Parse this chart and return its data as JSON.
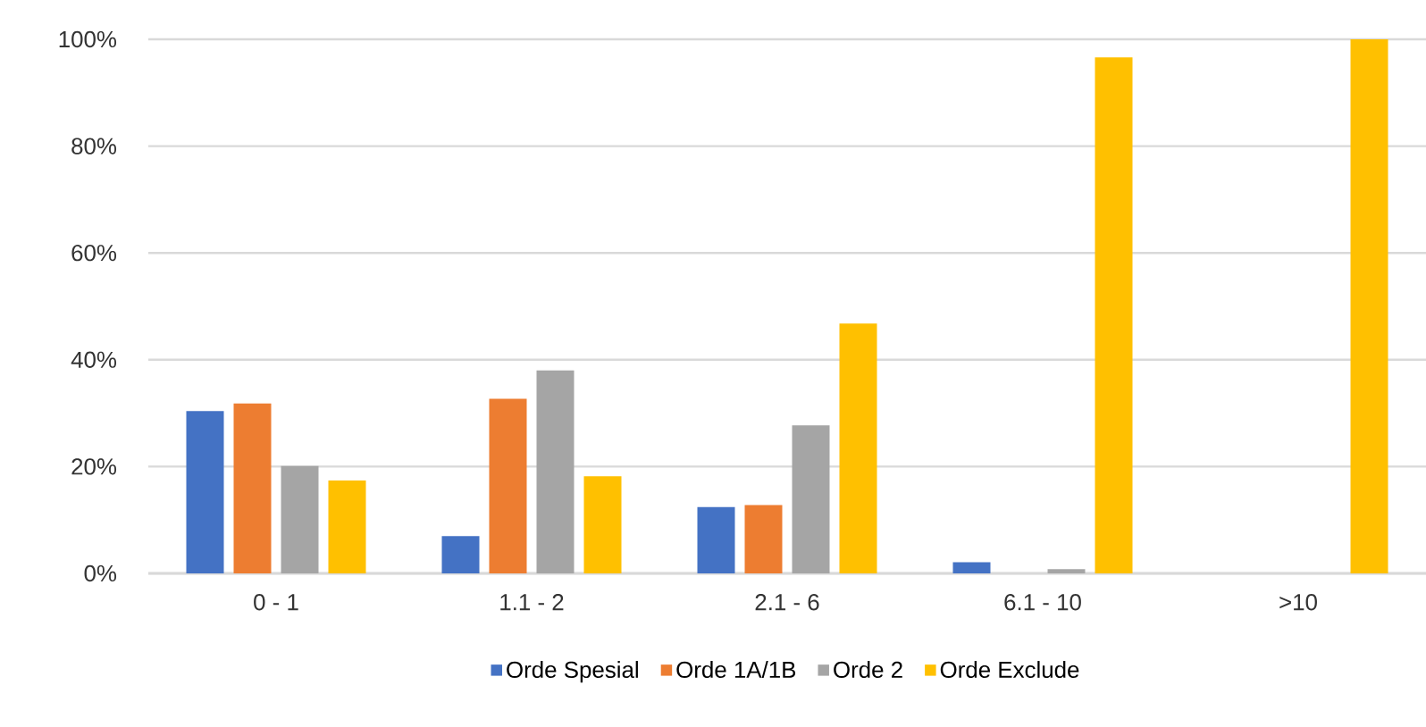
{
  "chart_data": {
    "type": "bar",
    "categories": [
      "0 - 1",
      "1.1 - 2",
      "2.1 - 6",
      "6.1 - 10",
      ">10"
    ],
    "series": [
      {
        "name": "Orde Spesial",
        "color": "#4472c4",
        "values": [
          30.4,
          7.0,
          12.4,
          2.1,
          0
        ]
      },
      {
        "name": "Orde 1A/1B",
        "color": "#ed7d31",
        "values": [
          31.8,
          32.7,
          12.8,
          0,
          0
        ]
      },
      {
        "name": "Orde 2",
        "color": "#a5a5a5",
        "values": [
          20.1,
          38.0,
          27.7,
          0.8,
          0
        ]
      },
      {
        "name": "Orde Exclude",
        "color": "#ffc000",
        "values": [
          17.4,
          18.2,
          46.8,
          96.6,
          100
        ]
      }
    ],
    "ylim": [
      0,
      100
    ],
    "yticks": [
      {
        "value": 0,
        "label": "0%"
      },
      {
        "value": 20,
        "label": "20%"
      },
      {
        "value": 40,
        "label": "40%"
      },
      {
        "value": 60,
        "label": "60%"
      },
      {
        "value": 80,
        "label": "80%"
      },
      {
        "value": 100,
        "label": "100%"
      }
    ],
    "grid": "y",
    "legend": "bottom"
  }
}
